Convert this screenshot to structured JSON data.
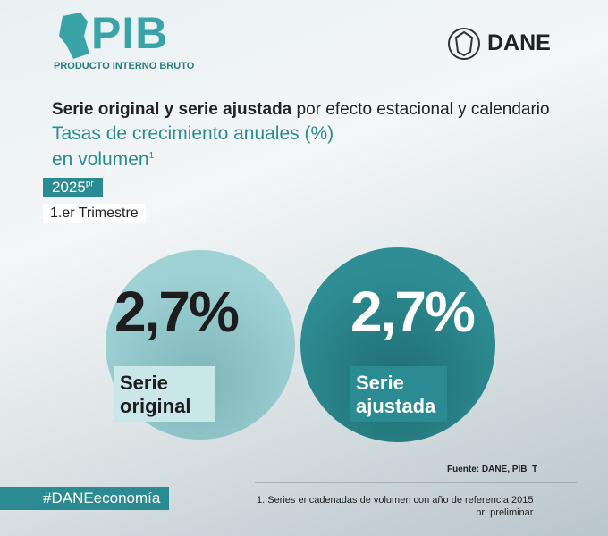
{
  "header": {
    "logo_title": "PIB",
    "logo_subtitle": "PRODUCTO INTERNO BRUTO",
    "organization": "DANE"
  },
  "title": {
    "bold": "Serie original y serie ajustada",
    "rest": "por efecto estacional y calendario",
    "subtitle": "Tasas de crecimiento anuales (%) en volumen",
    "subtitle_note": "1"
  },
  "period": {
    "year": "2025",
    "year_note": "pr",
    "quarter": "1.er Trimestre"
  },
  "indicators": [
    {
      "value": "2,7%",
      "label": "Serie original"
    },
    {
      "value": "2,7%",
      "label": "Serie ajustada"
    }
  ],
  "footer": {
    "source": "Fuente: DANE, PIB_T",
    "hashtag": "#DANEeconomía",
    "notes": [
      "1. Series encadenadas de volumen con año de referencia 2015",
      "pr: preliminar"
    ]
  }
}
